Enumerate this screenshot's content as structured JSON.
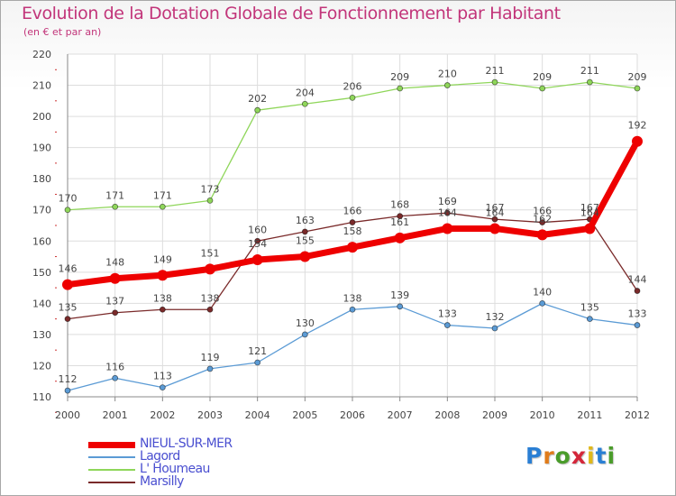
{
  "title": "Evolution de la Dotation Globale de Fonctionnement par Habitant",
  "subtitle": "(en € et par an)",
  "logo": {
    "text": "Proxiti",
    "letters": [
      "P",
      "r",
      "o",
      "x",
      "i",
      "t",
      "i"
    ],
    "colors": [
      "#2a7fd4",
      "#e07b1a",
      "#4a9c2a",
      "#d4263a",
      "#e0b81a",
      "#2a7fd4",
      "#4a9c2a"
    ]
  },
  "chart_data": {
    "type": "line",
    "title": "Evolution de la Dotation Globale de Fonctionnement par Habitant",
    "subtitle": "(en € et par an)",
    "x": [
      "2000",
      "2001",
      "2002",
      "2003",
      "2004",
      "2005",
      "2006",
      "2007",
      "2008",
      "2009",
      "2010",
      "2011",
      "2012"
    ],
    "ylim": [
      110,
      220
    ],
    "yticks": [
      110,
      120,
      130,
      140,
      150,
      160,
      170,
      180,
      190,
      200,
      210,
      220
    ],
    "grid": true,
    "legend_position": "bottom-left",
    "series": [
      {
        "name": "NIEUL-SUR-MER",
        "color": "#ee0000",
        "emphasis": true,
        "values": [
          146,
          148,
          149,
          151,
          154,
          155,
          158,
          161,
          164,
          164,
          162,
          164,
          192
        ],
        "labels": [
          "146",
          "148",
          "149",
          "151",
          "154",
          "155",
          "158",
          "161",
          "164",
          "164",
          "162",
          "164",
          "192"
        ]
      },
      {
        "name": "Lagord",
        "color": "#5b9bd5",
        "emphasis": false,
        "values": [
          112,
          116,
          113,
          119,
          121,
          130,
          138,
          139,
          133,
          132,
          140,
          135,
          133
        ],
        "labels": [
          "112",
          "116",
          "113",
          "119",
          "121",
          "130",
          "138",
          "139",
          "133",
          "132",
          "140",
          "135",
          "133"
        ]
      },
      {
        "name": "L' Houmeau",
        "color": "#8fd65a",
        "emphasis": false,
        "values": [
          170,
          171,
          171,
          173,
          202,
          204,
          206,
          209,
          210,
          211,
          209,
          211,
          209
        ],
        "labels": [
          "170",
          "171",
          "171",
          "173",
          "202",
          "204",
          "206",
          "209",
          "210",
          "211",
          "209",
          "211",
          "209"
        ]
      },
      {
        "name": "Marsilly",
        "color": "#7a2a2a",
        "emphasis": false,
        "values": [
          135,
          137,
          138,
          138,
          160,
          163,
          166,
          168,
          169,
          167,
          166,
          167,
          144
        ],
        "labels": [
          "135",
          "137",
          "138",
          "138",
          "160",
          "163",
          "166",
          "168",
          "169",
          "167",
          "166",
          "167",
          "144"
        ]
      }
    ]
  }
}
